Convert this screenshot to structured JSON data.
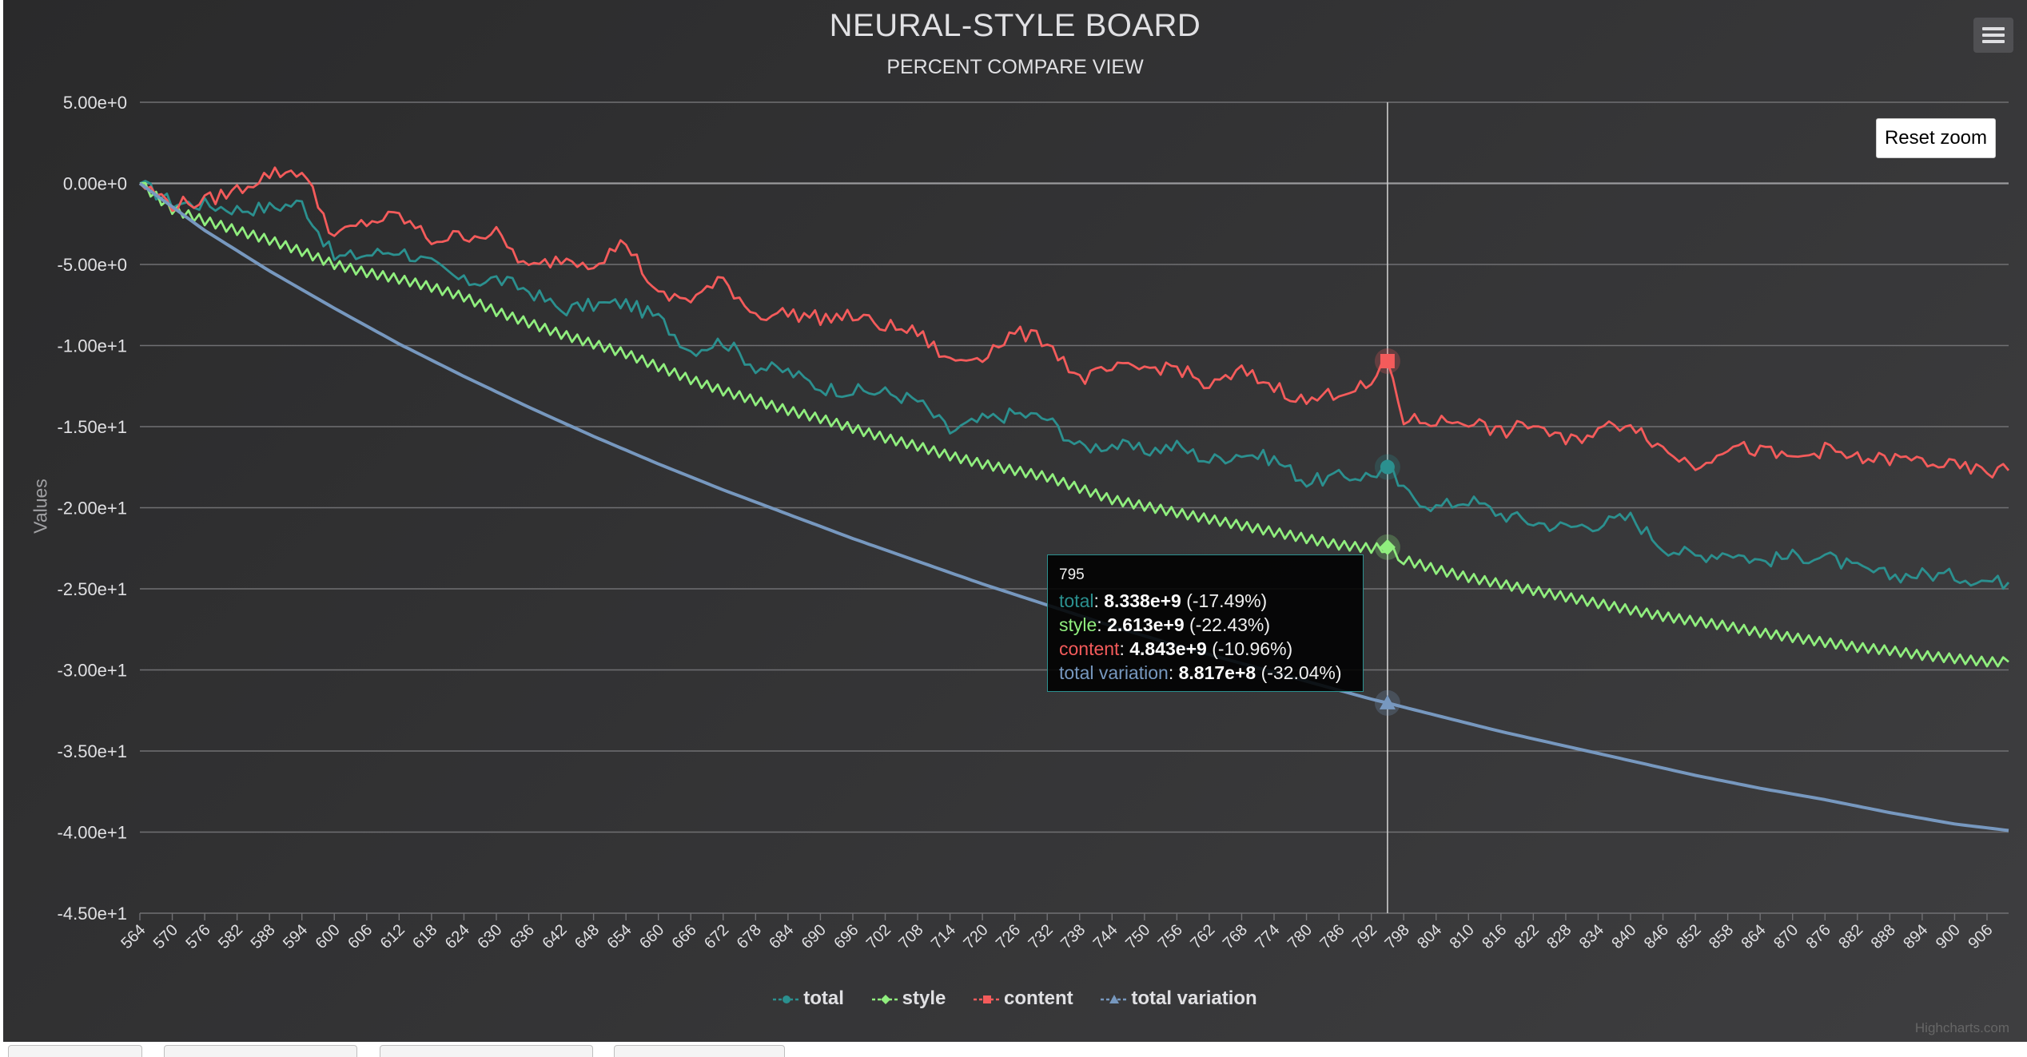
{
  "chart_data": {
    "type": "line",
    "title": "NEURAL-STYLE BOARD",
    "subtitle": "PERCENT COMPARE VIEW",
    "ylabel": "Values",
    "xlabel": "",
    "ylim": [
      -45,
      5
    ],
    "xlim": [
      564,
      910
    ],
    "y_ticks": [
      {
        "value": 5,
        "label": "5.00e+0"
      },
      {
        "value": 0,
        "label": "0.00e+0"
      },
      {
        "value": -5,
        "label": "-5.00e+0"
      },
      {
        "value": -10,
        "label": "-1.00e+1"
      },
      {
        "value": -15,
        "label": "-1.50e+1"
      },
      {
        "value": -20,
        "label": "-2.00e+1"
      },
      {
        "value": -25,
        "label": "-2.50e+1"
      },
      {
        "value": -30,
        "label": "-3.00e+1"
      },
      {
        "value": -35,
        "label": "-3.50e+1"
      },
      {
        "value": -40,
        "label": "-4.00e+1"
      },
      {
        "value": -45,
        "label": "-4.50e+1"
      }
    ],
    "x_tick_start": 564,
    "x_tick_step": 6,
    "x_tick_end": 906,
    "grid": true,
    "legend_position": "bottom-center",
    "crosshair_x": 795,
    "series": [
      {
        "name": "total",
        "color": "#2B908F",
        "marker": "circle",
        "points": [
          [
            564,
            0
          ],
          [
            570,
            -1.2
          ],
          [
            576,
            -1.3
          ],
          [
            582,
            -1.6
          ],
          [
            588,
            -1.5
          ],
          [
            594,
            -1.2
          ],
          [
            600,
            -4.6
          ],
          [
            606,
            -4.4
          ],
          [
            612,
            -4.1
          ],
          [
            618,
            -5.0
          ],
          [
            624,
            -6.1
          ],
          [
            630,
            -5.9
          ],
          [
            636,
            -6.6
          ],
          [
            642,
            -7.8
          ],
          [
            648,
            -7.5
          ],
          [
            654,
            -7.4
          ],
          [
            660,
            -8.3
          ],
          [
            666,
            -10.3
          ],
          [
            672,
            -9.7
          ],
          [
            678,
            -11.3
          ],
          [
            684,
            -11.6
          ],
          [
            690,
            -12.6
          ],
          [
            696,
            -12.8
          ],
          [
            702,
            -12.9
          ],
          [
            708,
            -13.4
          ],
          [
            714,
            -15.3
          ],
          [
            720,
            -14.6
          ],
          [
            726,
            -14.2
          ],
          [
            732,
            -14.5
          ],
          [
            738,
            -16.3
          ],
          [
            744,
            -16.1
          ],
          [
            750,
            -16.5
          ],
          [
            756,
            -16.2
          ],
          [
            762,
            -17.1
          ],
          [
            768,
            -16.6
          ],
          [
            774,
            -17.0
          ],
          [
            780,
            -18.4
          ],
          [
            786,
            -18.1
          ],
          [
            792,
            -18.0
          ],
          [
            795,
            -17.49
          ],
          [
            798,
            -19.0
          ],
          [
            804,
            -20.0
          ],
          [
            810,
            -19.5
          ],
          [
            816,
            -20.4
          ],
          [
            822,
            -20.9
          ],
          [
            828,
            -21.2
          ],
          [
            834,
            -21.0
          ],
          [
            840,
            -20.6
          ],
          [
            846,
            -22.4
          ],
          [
            852,
            -23.0
          ],
          [
            858,
            -22.7
          ],
          [
            864,
            -23.3
          ],
          [
            870,
            -23.0
          ],
          [
            876,
            -23.0
          ],
          [
            882,
            -23.8
          ],
          [
            888,
            -24.2
          ],
          [
            894,
            -24.1
          ],
          [
            900,
            -24.2
          ],
          [
            906,
            -24.5
          ],
          [
            910,
            -24.6
          ]
        ]
      },
      {
        "name": "style",
        "color": "#90EE7E",
        "marker": "diamond",
        "points": [
          [
            564,
            0
          ],
          [
            570,
            -1.6
          ],
          [
            576,
            -2.3
          ],
          [
            582,
            -2.9
          ],
          [
            588,
            -3.5
          ],
          [
            594,
            -4.2
          ],
          [
            600,
            -5.0
          ],
          [
            606,
            -5.5
          ],
          [
            612,
            -5.9
          ],
          [
            618,
            -6.4
          ],
          [
            624,
            -7.0
          ],
          [
            630,
            -7.9
          ],
          [
            636,
            -8.6
          ],
          [
            642,
            -9.3
          ],
          [
            648,
            -9.9
          ],
          [
            654,
            -10.5
          ],
          [
            660,
            -11.3
          ],
          [
            666,
            -12.1
          ],
          [
            672,
            -12.8
          ],
          [
            678,
            -13.4
          ],
          [
            684,
            -14.0
          ],
          [
            690,
            -14.5
          ],
          [
            696,
            -15.1
          ],
          [
            702,
            -15.7
          ],
          [
            708,
            -16.2
          ],
          [
            714,
            -16.8
          ],
          [
            720,
            -17.3
          ],
          [
            726,
            -17.7
          ],
          [
            732,
            -18.1
          ],
          [
            738,
            -18.8
          ],
          [
            744,
            -19.5
          ],
          [
            750,
            -19.9
          ],
          [
            756,
            -20.3
          ],
          [
            762,
            -20.7
          ],
          [
            768,
            -21.1
          ],
          [
            774,
            -21.5
          ],
          [
            780,
            -21.9
          ],
          [
            786,
            -22.3
          ],
          [
            792,
            -22.5
          ],
          [
            795,
            -22.43
          ],
          [
            798,
            -23.2
          ],
          [
            804,
            -23.8
          ],
          [
            810,
            -24.3
          ],
          [
            816,
            -24.7
          ],
          [
            822,
            -25.1
          ],
          [
            828,
            -25.5
          ],
          [
            834,
            -25.9
          ],
          [
            840,
            -26.3
          ],
          [
            846,
            -26.7
          ],
          [
            852,
            -27.0
          ],
          [
            858,
            -27.3
          ],
          [
            864,
            -27.7
          ],
          [
            870,
            -28.0
          ],
          [
            876,
            -28.3
          ],
          [
            882,
            -28.6
          ],
          [
            888,
            -28.8
          ],
          [
            894,
            -29.1
          ],
          [
            900,
            -29.3
          ],
          [
            906,
            -29.5
          ],
          [
            910,
            -29.5
          ]
        ]
      },
      {
        "name": "content",
        "color": "#F45B5B",
        "marker": "square",
        "points": [
          [
            564,
            0
          ],
          [
            570,
            -1.3
          ],
          [
            576,
            -1.1
          ],
          [
            582,
            -0.4
          ],
          [
            588,
            0.6
          ],
          [
            594,
            0.8
          ],
          [
            600,
            -3.3
          ],
          [
            606,
            -2.4
          ],
          [
            612,
            -2.0
          ],
          [
            618,
            -3.5
          ],
          [
            624,
            -3.2
          ],
          [
            630,
            -3.1
          ],
          [
            636,
            -5.3
          ],
          [
            642,
            -4.6
          ],
          [
            648,
            -4.9
          ],
          [
            654,
            -3.6
          ],
          [
            660,
            -7.0
          ],
          [
            666,
            -7.1
          ],
          [
            672,
            -6.0
          ],
          [
            678,
            -8.1
          ],
          [
            684,
            -8.0
          ],
          [
            690,
            -8.3
          ],
          [
            696,
            -8.2
          ],
          [
            702,
            -8.8
          ],
          [
            708,
            -9.2
          ],
          [
            714,
            -11.0
          ],
          [
            720,
            -10.6
          ],
          [
            726,
            -9.2
          ],
          [
            732,
            -9.7
          ],
          [
            738,
            -12.1
          ],
          [
            744,
            -11.5
          ],
          [
            750,
            -11.4
          ],
          [
            756,
            -11.3
          ],
          [
            762,
            -12.6
          ],
          [
            768,
            -11.6
          ],
          [
            774,
            -12.5
          ],
          [
            780,
            -13.5
          ],
          [
            786,
            -12.8
          ],
          [
            792,
            -12.5
          ],
          [
            795,
            -10.96
          ],
          [
            798,
            -14.6
          ],
          [
            804,
            -14.7
          ],
          [
            810,
            -14.6
          ],
          [
            816,
            -15.4
          ],
          [
            822,
            -14.8
          ],
          [
            828,
            -16.0
          ],
          [
            834,
            -15.2
          ],
          [
            840,
            -14.7
          ],
          [
            846,
            -16.4
          ],
          [
            852,
            -17.4
          ],
          [
            858,
            -16.2
          ],
          [
            864,
            -16.5
          ],
          [
            870,
            -17.0
          ],
          [
            876,
            -16.4
          ],
          [
            882,
            -17.0
          ],
          [
            888,
            -17.0
          ],
          [
            894,
            -17.1
          ],
          [
            900,
            -17.5
          ],
          [
            906,
            -17.8
          ],
          [
            910,
            -17.7
          ]
        ]
      },
      {
        "name": "total variation",
        "color": "#7798BF",
        "marker": "triangle",
        "points": [
          [
            564,
            0
          ],
          [
            576,
            -2.9
          ],
          [
            588,
            -5.4
          ],
          [
            600,
            -7.7
          ],
          [
            612,
            -9.9
          ],
          [
            624,
            -11.9
          ],
          [
            636,
            -13.8
          ],
          [
            648,
            -15.6
          ],
          [
            660,
            -17.3
          ],
          [
            672,
            -18.9
          ],
          [
            684,
            -20.4
          ],
          [
            696,
            -21.9
          ],
          [
            708,
            -23.3
          ],
          [
            720,
            -24.7
          ],
          [
            732,
            -26.0
          ],
          [
            744,
            -27.3
          ],
          [
            756,
            -28.5
          ],
          [
            768,
            -29.6
          ],
          [
            780,
            -30.7
          ],
          [
            792,
            -31.8
          ],
          [
            795,
            -32.04
          ],
          [
            804,
            -32.8
          ],
          [
            816,
            -33.8
          ],
          [
            828,
            -34.7
          ],
          [
            840,
            -35.6
          ],
          [
            852,
            -36.5
          ],
          [
            864,
            -37.3
          ],
          [
            876,
            -38.0
          ],
          [
            888,
            -38.8
          ],
          [
            900,
            -39.5
          ],
          [
            910,
            -39.9
          ]
        ]
      }
    ]
  },
  "tooltip": {
    "header": "795",
    "rows": [
      {
        "label": "total",
        "value": "8.338e+9",
        "pct": "(-17.49%)",
        "color": "#2B908F"
      },
      {
        "label": "style",
        "value": "2.613e+9",
        "pct": "(-22.43%)",
        "color": "#90EE7E"
      },
      {
        "label": "content",
        "value": "4.843e+9",
        "pct": "(-10.96%)",
        "color": "#F45B5B"
      },
      {
        "label": "total variation",
        "value": "8.817e+8",
        "pct": "(-32.04%)",
        "color": "#7798BF"
      }
    ]
  },
  "controls": {
    "reset_zoom": "Reset zoom",
    "menu_icon": "hamburger-menu-icon"
  },
  "credits": "Highcharts.com",
  "colors": {
    "background_start": "#2a2a2b",
    "background_end": "#3e3e40",
    "grid": "#707073",
    "text": "#E0E0E3",
    "axis_title": "#A0A0A3"
  }
}
